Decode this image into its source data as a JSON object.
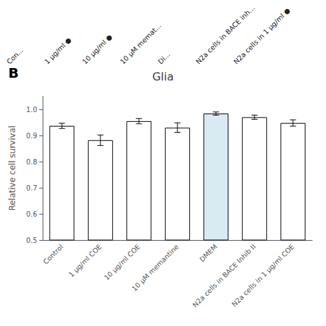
{
  "chart_data": {
    "type": "bar",
    "title": "Glia",
    "annotations": [
      "B",
      "Con...",
      "1 μg/ml ●",
      "10 μg/ml ●",
      "10 μM memat...",
      "Di...",
      "N2a cells in BACE inh...",
      "N2a cells in 1 μg/ml ●"
    ],
    "ylabel": "Relative cell survival",
    "categories": [
      "Control",
      "1 μg/ml COE",
      "10 μg/ml COE",
      "10 μM memantine",
      "DMEM",
      "N2a cells in BACE Inhib II",
      "N2a cells in 1 μg/ml COE"
    ],
    "values": [
      0.937,
      0.882,
      0.955,
      0.93,
      0.984,
      0.97,
      0.948
    ],
    "errors": [
      0.01,
      0.02,
      0.01,
      0.018,
      0.006,
      0.008,
      0.012
    ],
    "colors": [
      "white",
      "white",
      "white",
      "white",
      "#d8eaf2",
      "white",
      "white"
    ],
    "ylim": [
      0.5,
      1.05
    ],
    "yticks": [
      0.5,
      0.6,
      0.7,
      0.8,
      0.9,
      {
        "value": 1.0,
        "label": "1.0"
      }
    ],
    "grid": false
  }
}
